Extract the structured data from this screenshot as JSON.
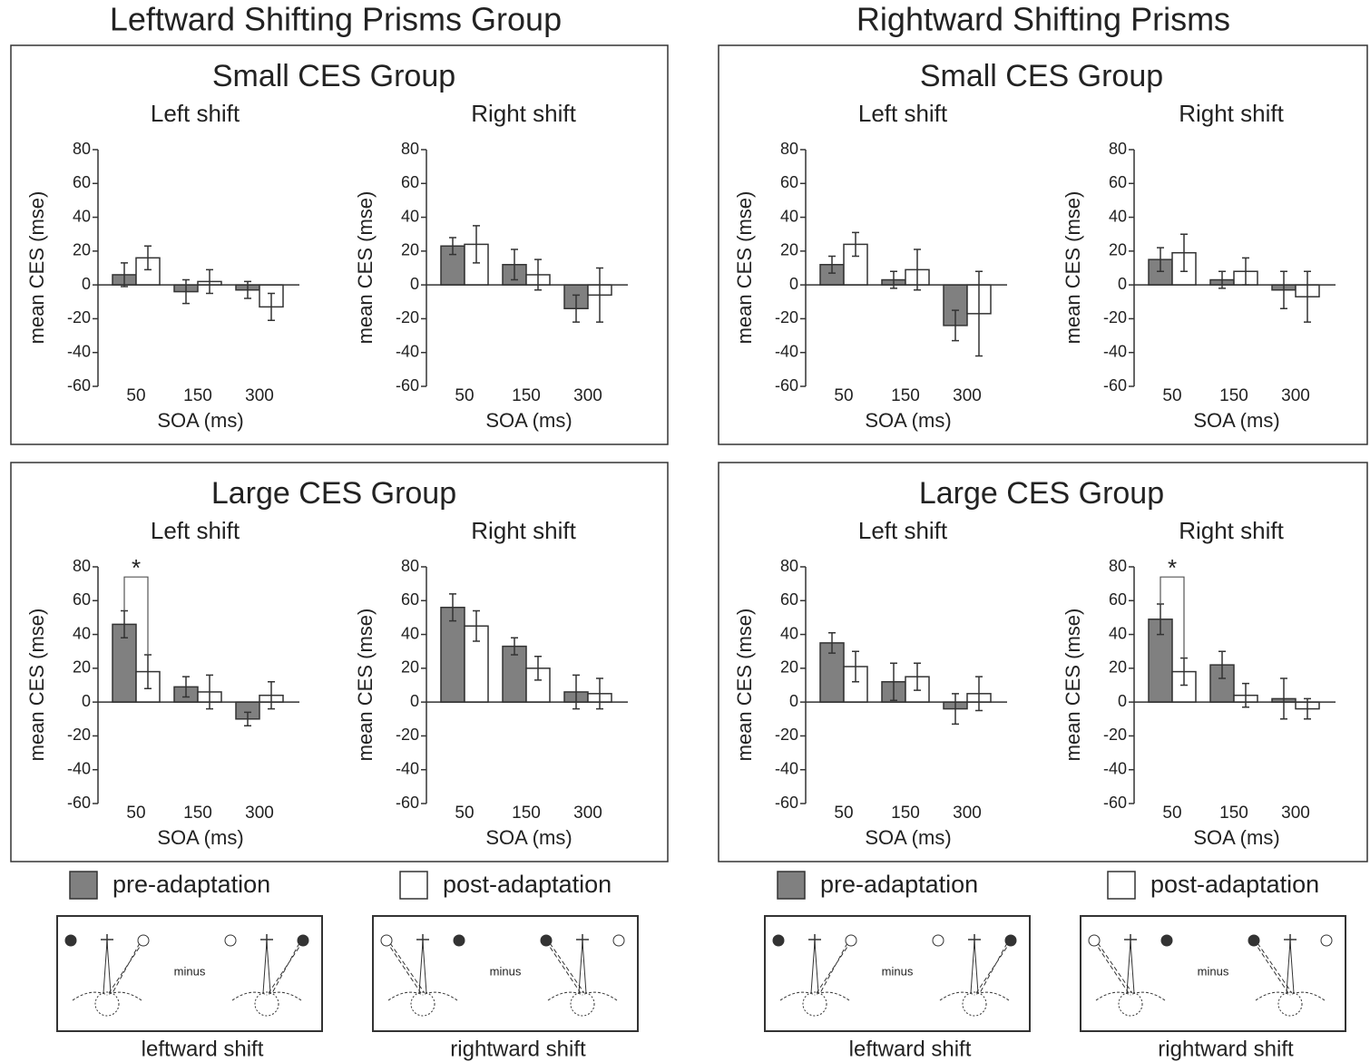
{
  "halves": [
    {
      "title": "Leftward Shifting Prisms Group",
      "groups": [
        "Small CES Group",
        "Large CES Group"
      ],
      "diagrams": [
        {
          "middle": "minus",
          "caption": "leftward shift"
        },
        {
          "middle": "minus",
          "caption": "rightward shift"
        }
      ]
    },
    {
      "title": "Rightward Shifting Prisms",
      "groups": [
        "Small CES Group",
        "Large CES Group"
      ],
      "diagrams": [
        {
          "middle": "minus",
          "caption": "leftward shift"
        },
        {
          "middle": "minus",
          "caption": "rightward shift"
        }
      ]
    }
  ],
  "chart_data": [
    {
      "type": "bar",
      "title": "Left shift",
      "x_label": "SOA (ms)",
      "y_label": "mean CES (mse)",
      "categories": [
        "50",
        "150",
        "300"
      ],
      "series": [
        {
          "name": "pre-adaptation",
          "color": "#808080",
          "values": [
            6,
            -4,
            -3
          ],
          "errors": [
            7,
            7,
            5
          ]
        },
        {
          "name": "post-adaptation",
          "color": "#ffffff",
          "values": [
            16,
            2,
            -13
          ],
          "errors": [
            7,
            7,
            8
          ]
        }
      ],
      "ylim": [
        -60,
        80
      ],
      "yticks": [
        -60,
        -40,
        -20,
        0,
        20,
        40,
        60,
        80
      ]
    },
    {
      "type": "bar",
      "title": "Right shift",
      "x_label": "SOA (ms)",
      "y_label": "mean CES (mse)",
      "categories": [
        "50",
        "150",
        "300"
      ],
      "series": [
        {
          "name": "pre-adaptation",
          "color": "#808080",
          "values": [
            23,
            12,
            -14
          ],
          "errors": [
            5,
            9,
            8
          ]
        },
        {
          "name": "post-adaptation",
          "color": "#ffffff",
          "values": [
            24,
            6,
            -6
          ],
          "errors": [
            11,
            9,
            16
          ]
        }
      ],
      "ylim": [
        -60,
        80
      ],
      "yticks": [
        -60,
        -40,
        -20,
        0,
        20,
        40,
        60,
        80
      ]
    },
    {
      "type": "bar",
      "title": "Left shift",
      "x_label": "SOA (ms)",
      "y_label": "mean CES (mse)",
      "categories": [
        "50",
        "150",
        "300"
      ],
      "annotation": "*",
      "series": [
        {
          "name": "pre-adaptation",
          "color": "#808080",
          "values": [
            46,
            9,
            -10
          ],
          "errors": [
            8,
            6,
            4
          ]
        },
        {
          "name": "post-adaptation",
          "color": "#ffffff",
          "values": [
            18,
            6,
            4
          ],
          "errors": [
            10,
            10,
            8
          ]
        }
      ],
      "ylim": [
        -60,
        80
      ],
      "yticks": [
        -60,
        -40,
        -20,
        0,
        20,
        40,
        60,
        80
      ]
    },
    {
      "type": "bar",
      "title": "Right shift",
      "x_label": "SOA (ms)",
      "y_label": "mean CES (mse)",
      "categories": [
        "50",
        "150",
        "300"
      ],
      "series": [
        {
          "name": "pre-adaptation",
          "color": "#808080",
          "values": [
            56,
            33,
            6
          ],
          "errors": [
            8,
            5,
            10
          ]
        },
        {
          "name": "post-adaptation",
          "color": "#ffffff",
          "values": [
            45,
            20,
            5
          ],
          "errors": [
            9,
            7,
            9
          ]
        }
      ],
      "ylim": [
        -60,
        80
      ],
      "yticks": [
        -60,
        -40,
        -20,
        0,
        20,
        40,
        60,
        80
      ]
    },
    {
      "type": "bar",
      "title": "Left shift",
      "x_label": "SOA (ms)",
      "y_label": "mean CES (mse)",
      "categories": [
        "50",
        "150",
        "300"
      ],
      "series": [
        {
          "name": "pre-adaptation",
          "color": "#808080",
          "values": [
            12,
            3,
            -24
          ],
          "errors": [
            5,
            5,
            9
          ]
        },
        {
          "name": "post-adaptation",
          "color": "#ffffff",
          "values": [
            24,
            9,
            -17
          ],
          "errors": [
            7,
            12,
            25
          ]
        }
      ],
      "ylim": [
        -60,
        80
      ],
      "yticks": [
        -60,
        -40,
        -20,
        0,
        20,
        40,
        60,
        80
      ]
    },
    {
      "type": "bar",
      "title": "Right shift",
      "x_label": "SOA (ms)",
      "y_label": "mean CES (mse)",
      "categories": [
        "50",
        "150",
        "300"
      ],
      "series": [
        {
          "name": "pre-adaptation",
          "color": "#808080",
          "values": [
            15,
            3,
            -3
          ],
          "errors": [
            7,
            5,
            11
          ]
        },
        {
          "name": "post-adaptation",
          "color": "#ffffff",
          "values": [
            19,
            8,
            -7
          ],
          "errors": [
            11,
            8,
            15
          ]
        }
      ],
      "ylim": [
        -60,
        80
      ],
      "yticks": [
        -60,
        -40,
        -20,
        0,
        20,
        40,
        60,
        80
      ]
    },
    {
      "type": "bar",
      "title": "Left shift",
      "x_label": "SOA (ms)",
      "y_label": "mean CES (mse)",
      "categories": [
        "50",
        "150",
        "300"
      ],
      "series": [
        {
          "name": "pre-adaptation",
          "color": "#808080",
          "values": [
            35,
            12,
            -4
          ],
          "errors": [
            6,
            11,
            9
          ]
        },
        {
          "name": "post-adaptation",
          "color": "#ffffff",
          "values": [
            21,
            15,
            5
          ],
          "errors": [
            9,
            8,
            10
          ]
        }
      ],
      "ylim": [
        -60,
        80
      ],
      "yticks": [
        -60,
        -40,
        -20,
        0,
        20,
        40,
        60,
        80
      ]
    },
    {
      "type": "bar",
      "title": "Right shift",
      "x_label": "SOA (ms)",
      "y_label": "mean CES (mse)",
      "categories": [
        "50",
        "150",
        "300"
      ],
      "annotation": "*",
      "series": [
        {
          "name": "pre-adaptation",
          "color": "#808080",
          "values": [
            49,
            22,
            2
          ],
          "errors": [
            9,
            8,
            12
          ]
        },
        {
          "name": "post-adaptation",
          "color": "#ffffff",
          "values": [
            18,
            4,
            -4
          ],
          "errors": [
            8,
            7,
            6
          ]
        }
      ],
      "ylim": [
        -60,
        80
      ],
      "yticks": [
        -60,
        -40,
        -20,
        0,
        20,
        40,
        60,
        80
      ]
    }
  ]
}
